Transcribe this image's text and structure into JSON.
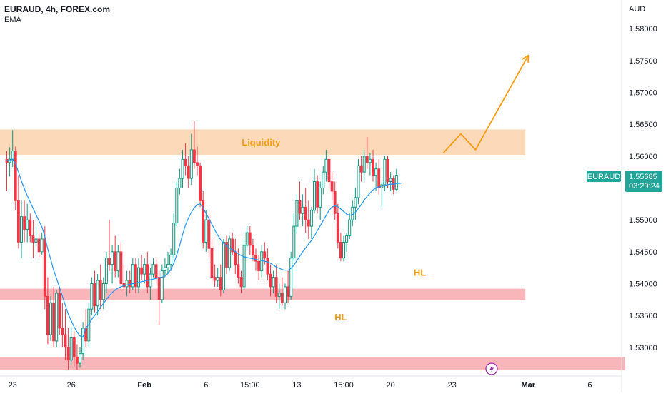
{
  "header": {
    "symbol_line": "EURAUD, 4h, FOREX.com",
    "indicator": "EMA"
  },
  "chart_data": {
    "type": "candlestick",
    "symbol": "EURAUD",
    "price_axis_label": "AUD",
    "y_ticks": [
      "1.58000",
      "1.57500",
      "1.57000",
      "1.56500",
      "1.56000",
      "1.55500",
      "1.55000",
      "1.54500",
      "1.54000",
      "1.53500",
      "1.53000"
    ],
    "ylim": [
      1.5255,
      1.5845
    ],
    "x_ticks": [
      {
        "label": "23",
        "i": 2
      },
      {
        "label": "26",
        "i": 22
      },
      {
        "label": "Feb",
        "i": 47
      },
      {
        "label": "6",
        "i": 68
      },
      {
        "label": "15:00",
        "i": 83
      },
      {
        "label": "13",
        "i": 99
      },
      {
        "label": "15:00",
        "i": 115
      },
      {
        "label": "20",
        "i": 131
      },
      {
        "label": "23",
        "i": 152
      },
      {
        "label": "Mar",
        "i": 178
      },
      {
        "label": "6",
        "i": 199
      }
    ],
    "ohlc": [
      [
        1.5595,
        1.5608,
        1.5545,
        1.559
      ],
      [
        1.559,
        1.5614,
        1.5568,
        1.5595
      ],
      [
        1.5595,
        1.5641,
        1.5583,
        1.5608
      ],
      [
        1.5608,
        1.5615,
        1.5515,
        1.553
      ],
      [
        1.553,
        1.557,
        1.5455,
        1.5465
      ],
      [
        1.5465,
        1.553,
        1.544,
        1.5505
      ],
      [
        1.5505,
        1.553,
        1.5465,
        1.5485
      ],
      [
        1.5485,
        1.5525,
        1.5465,
        1.55
      ],
      [
        1.55,
        1.551,
        1.5465,
        1.5475
      ],
      [
        1.5475,
        1.55,
        1.544,
        1.5465
      ],
      [
        1.5465,
        1.549,
        1.5455,
        1.547
      ],
      [
        1.547,
        1.548,
        1.544,
        1.545
      ],
      [
        1.545,
        1.548,
        1.5445,
        1.547
      ],
      [
        1.547,
        1.549,
        1.536,
        1.538
      ],
      [
        1.538,
        1.541,
        1.5305,
        1.532
      ],
      [
        1.532,
        1.538,
        1.531,
        1.537
      ],
      [
        1.537,
        1.5395,
        1.53,
        1.531
      ],
      [
        1.531,
        1.539,
        1.53,
        1.5385
      ],
      [
        1.5385,
        1.5395,
        1.532,
        1.533
      ],
      [
        1.533,
        1.537,
        1.53,
        1.532
      ],
      [
        1.532,
        1.536,
        1.528,
        1.53
      ],
      [
        1.53,
        1.533,
        1.5265,
        1.528
      ],
      [
        1.528,
        1.533,
        1.5272,
        1.5315
      ],
      [
        1.5315,
        1.5325,
        1.527,
        1.5285
      ],
      [
        1.5285,
        1.5305,
        1.5265,
        1.5275
      ],
      [
        1.5275,
        1.53,
        1.5268,
        1.529
      ],
      [
        1.529,
        1.534,
        1.528,
        1.533
      ],
      [
        1.533,
        1.536,
        1.53,
        1.531
      ],
      [
        1.531,
        1.537,
        1.53,
        1.536
      ],
      [
        1.536,
        1.541,
        1.535,
        1.54
      ],
      [
        1.54,
        1.542,
        1.5355,
        1.5365
      ],
      [
        1.5365,
        1.5415,
        1.535,
        1.5405
      ],
      [
        1.5405,
        1.543,
        1.536,
        1.5375
      ],
      [
        1.5375,
        1.541,
        1.536,
        1.54
      ],
      [
        1.54,
        1.545,
        1.5385,
        1.544
      ],
      [
        1.544,
        1.55,
        1.542,
        1.543
      ],
      [
        1.543,
        1.546,
        1.54,
        1.545
      ],
      [
        1.545,
        1.5475,
        1.541,
        1.542
      ],
      [
        1.542,
        1.546,
        1.541,
        1.545
      ],
      [
        1.545,
        1.5465,
        1.539,
        1.54
      ],
      [
        1.54,
        1.543,
        1.5385,
        1.5395
      ],
      [
        1.5395,
        1.542,
        1.538,
        1.5405
      ],
      [
        1.5405,
        1.542,
        1.5385,
        1.5395
      ],
      [
        1.5395,
        1.544,
        1.539,
        1.543
      ],
      [
        1.543,
        1.544,
        1.5385,
        1.5395
      ],
      [
        1.5395,
        1.544,
        1.5385,
        1.5425
      ],
      [
        1.5425,
        1.5445,
        1.5405,
        1.5415
      ],
      [
        1.5415,
        1.544,
        1.54,
        1.543
      ],
      [
        1.543,
        1.545,
        1.5385,
        1.5395
      ],
      [
        1.5395,
        1.5425,
        1.5375,
        1.5415
      ],
      [
        1.5415,
        1.544,
        1.541,
        1.543
      ],
      [
        1.543,
        1.544,
        1.54,
        1.541
      ],
      [
        1.541,
        1.542,
        1.5335,
        1.5375
      ],
      [
        1.5375,
        1.543,
        1.537,
        1.542
      ],
      [
        1.542,
        1.544,
        1.541,
        1.5425
      ],
      [
        1.5425,
        1.545,
        1.5415,
        1.543
      ],
      [
        1.543,
        1.5455,
        1.542,
        1.5445
      ],
      [
        1.5445,
        1.551,
        1.544,
        1.5495
      ],
      [
        1.5495,
        1.556,
        1.549,
        1.555
      ],
      [
        1.555,
        1.558,
        1.554,
        1.5565
      ],
      [
        1.5565,
        1.561,
        1.555,
        1.5595
      ],
      [
        1.5595,
        1.562,
        1.557,
        1.5585
      ],
      [
        1.5585,
        1.56,
        1.555,
        1.5565
      ],
      [
        1.5565,
        1.5635,
        1.5555,
        1.561
      ],
      [
        1.561,
        1.5655,
        1.558,
        1.559
      ],
      [
        1.559,
        1.5615,
        1.557,
        1.5585
      ],
      [
        1.5585,
        1.559,
        1.552,
        1.553
      ],
      [
        1.553,
        1.5545,
        1.5455,
        1.5465
      ],
      [
        1.5465,
        1.5515,
        1.545,
        1.55
      ],
      [
        1.55,
        1.551,
        1.544,
        1.5455
      ],
      [
        1.5455,
        1.547,
        1.54,
        1.541
      ],
      [
        1.541,
        1.543,
        1.5395,
        1.5405
      ],
      [
        1.5405,
        1.5425,
        1.5395,
        1.541
      ],
      [
        1.541,
        1.543,
        1.538,
        1.539
      ],
      [
        1.539,
        1.547,
        1.5385,
        1.5465
      ],
      [
        1.5465,
        1.5475,
        1.5415,
        1.5425
      ],
      [
        1.5425,
        1.5475,
        1.542,
        1.547
      ],
      [
        1.547,
        1.548,
        1.5445,
        1.545
      ],
      [
        1.545,
        1.547,
        1.5415,
        1.543
      ],
      [
        1.543,
        1.5455,
        1.54,
        1.541
      ],
      [
        1.541,
        1.542,
        1.5385,
        1.5395
      ],
      [
        1.5395,
        1.547,
        1.539,
        1.546
      ],
      [
        1.546,
        1.549,
        1.5455,
        1.548
      ],
      [
        1.548,
        1.549,
        1.5445,
        1.546
      ],
      [
        1.546,
        1.547,
        1.5435,
        1.5445
      ],
      [
        1.5445,
        1.5455,
        1.542,
        1.5435
      ],
      [
        1.5435,
        1.5445,
        1.5405,
        1.542
      ],
      [
        1.542,
        1.546,
        1.541,
        1.545
      ],
      [
        1.545,
        1.5465,
        1.543,
        1.544
      ],
      [
        1.544,
        1.5455,
        1.5405,
        1.5415
      ],
      [
        1.5415,
        1.543,
        1.538,
        1.5395
      ],
      [
        1.5395,
        1.542,
        1.5385,
        1.541
      ],
      [
        1.541,
        1.543,
        1.537,
        1.538
      ],
      [
        1.538,
        1.54,
        1.536,
        1.5385
      ],
      [
        1.5385,
        1.541,
        1.5365,
        1.537
      ],
      [
        1.537,
        1.54,
        1.536,
        1.5395
      ],
      [
        1.5395,
        1.542,
        1.537,
        1.538
      ],
      [
        1.538,
        1.545,
        1.5375,
        1.544
      ],
      [
        1.544,
        1.551,
        1.5435,
        1.549
      ],
      [
        1.549,
        1.554,
        1.548,
        1.553
      ],
      [
        1.553,
        1.556,
        1.55,
        1.551
      ],
      [
        1.551,
        1.554,
        1.549,
        1.552
      ],
      [
        1.552,
        1.555,
        1.548,
        1.55
      ],
      [
        1.55,
        1.553,
        1.547,
        1.549
      ],
      [
        1.549,
        1.552,
        1.547,
        1.5515
      ],
      [
        1.5515,
        1.558,
        1.551,
        1.556
      ],
      [
        1.556,
        1.557,
        1.551,
        1.552
      ],
      [
        1.552,
        1.556,
        1.55,
        1.555
      ],
      [
        1.555,
        1.5585,
        1.554,
        1.5575
      ],
      [
        1.5575,
        1.561,
        1.556,
        1.5595
      ],
      [
        1.5595,
        1.56,
        1.555,
        1.556
      ],
      [
        1.556,
        1.5575,
        1.553,
        1.5545
      ],
      [
        1.5545,
        1.556,
        1.55,
        1.551
      ],
      [
        1.551,
        1.5525,
        1.5455,
        1.5465
      ],
      [
        1.5465,
        1.548,
        1.5435,
        1.544
      ],
      [
        1.544,
        1.5475,
        1.5435,
        1.5465
      ],
      [
        1.5465,
        1.548,
        1.545,
        1.5475
      ],
      [
        1.5475,
        1.551,
        1.547,
        1.55
      ],
      [
        1.55,
        1.553,
        1.549,
        1.552
      ],
      [
        1.552,
        1.555,
        1.55,
        1.5535
      ],
      [
        1.5535,
        1.5595,
        1.5525,
        1.5585
      ],
      [
        1.5585,
        1.56,
        1.556,
        1.5575
      ],
      [
        1.5575,
        1.561,
        1.556,
        1.56
      ],
      [
        1.56,
        1.563,
        1.558,
        1.559
      ],
      [
        1.559,
        1.5605,
        1.557,
        1.5595
      ],
      [
        1.5595,
        1.561,
        1.556,
        1.557
      ],
      [
        1.557,
        1.559,
        1.5545,
        1.558
      ],
      [
        1.558,
        1.5595,
        1.554,
        1.555
      ],
      [
        1.555,
        1.556,
        1.552,
        1.5555
      ],
      [
        1.5555,
        1.56,
        1.5545,
        1.5595
      ],
      [
        1.5595,
        1.56,
        1.555,
        1.556
      ],
      [
        1.556,
        1.5575,
        1.5545,
        1.5565
      ],
      [
        1.5565,
        1.557,
        1.554,
        1.5548
      ],
      [
        1.5548,
        1.558,
        1.5545,
        1.557
      ]
    ],
    "ema": [
      1.5593,
      1.5593,
      1.5595,
      1.5588,
      1.5575,
      1.5561,
      1.5549,
      1.5538,
      1.5528,
      1.5518,
      1.5508,
      1.5498,
      1.5489,
      1.5474,
      1.5454,
      1.5438,
      1.5421,
      1.5408,
      1.5394,
      1.538,
      1.5366,
      1.5352,
      1.5342,
      1.5332,
      1.5324,
      1.5318,
      1.5316,
      1.5331,
      1.5336,
      1.5344,
      1.535,
      1.5356,
      1.5363,
      1.5369,
      1.5375,
      1.5381,
      1.5386,
      1.539,
      1.5393,
      1.5395,
      1.5397,
      1.5398,
      1.5399,
      1.54,
      1.5401,
      1.5402,
      1.5403,
      1.5404,
      1.5405,
      1.5406,
      1.5407,
      1.5408,
      1.5409,
      1.541,
      1.5412,
      1.5416,
      1.5422,
      1.5432,
      1.5445,
      1.546,
      1.5477,
      1.5492,
      1.5503,
      1.5512,
      1.5519,
      1.5524,
      1.5525,
      1.5519,
      1.551,
      1.5502,
      1.5493,
      1.5484,
      1.5476,
      1.5469,
      1.5463,
      1.5459,
      1.5456,
      1.5453,
      1.545,
      1.5447,
      1.5444,
      1.5442,
      1.5441,
      1.544,
      1.5439,
      1.5438,
      1.5437,
      1.5436,
      1.5435,
      1.5434,
      1.5432,
      1.5429,
      1.5426,
      1.5424,
      1.5422,
      1.5421,
      1.5421,
      1.5424,
      1.5429,
      1.5436,
      1.5443,
      1.545,
      1.5456,
      1.5462,
      1.5468,
      1.5475,
      1.5483,
      1.5491,
      1.5499,
      1.5507,
      1.5515,
      1.552,
      1.5522,
      1.5521,
      1.5517,
      1.5513,
      1.5509,
      1.5507,
      1.5508,
      1.5512,
      1.5518,
      1.5524,
      1.5531,
      1.5537,
      1.5542,
      1.5547,
      1.555,
      1.5552,
      1.5553,
      1.5554,
      1.5555,
      1.5556,
      1.5556,
      1.5557,
      1.5557,
      1.5558
    ],
    "zones": [
      {
        "label": "Liquidity",
        "top": 1.5642,
        "bottom": 1.5602,
        "i_start": 0,
        "i_end": 177,
        "color": "#fcd9b9",
        "label_color": "#f0a019"
      },
      {
        "label": "",
        "top": 1.5392,
        "bottom": 1.5374,
        "i_start": 0,
        "i_end": 177,
        "color": "#f9b6ba"
      },
      {
        "label": "",
        "top": 1.5285,
        "bottom": 1.5264,
        "i_start": 0,
        "i_end": 211,
        "color": "#f9b6ba"
      }
    ],
    "annotations": [
      {
        "text": "HL",
        "i": 114,
        "price": 1.5348
      },
      {
        "text": "HL",
        "i": 141,
        "price": 1.5418
      }
    ],
    "projection": [
      {
        "i": 149,
        "price": 1.5605
      },
      {
        "i": 155,
        "price": 1.5635
      },
      {
        "i": 160,
        "price": 1.561
      },
      {
        "i": 178,
        "price": 1.5758
      }
    ],
    "last_price": {
      "symbol": "EURAUD",
      "value": "1.55685",
      "countdown": "03:29:24",
      "price": 1.55685
    },
    "colors": {
      "up": "#089981",
      "down": "#f23645",
      "ema": "#2196f3",
      "accent": "#f39c12",
      "badge": "#22a699"
    }
  }
}
